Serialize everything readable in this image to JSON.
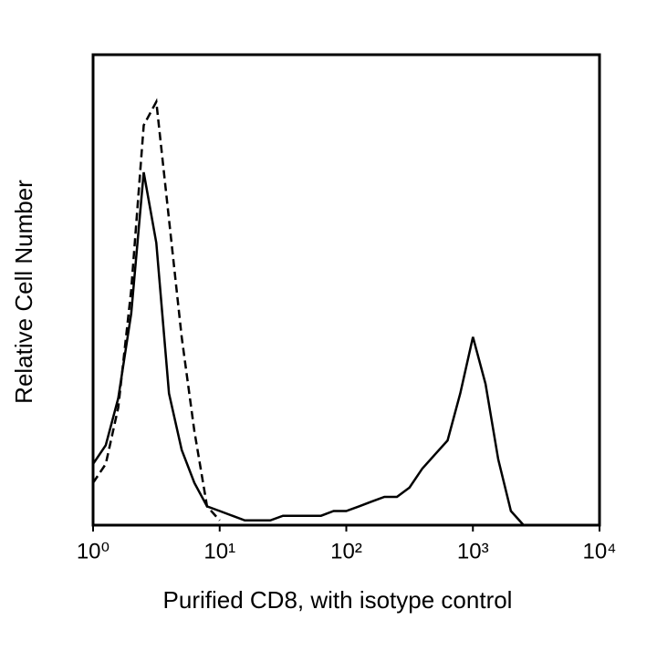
{
  "chart_data": {
    "type": "line",
    "x_label": "Purified CD8, with isotype control",
    "y_label": "Relative Cell Number",
    "x": [
      1,
      1.26,
      1.58,
      2,
      2.51,
      3.16,
      3.98,
      5.01,
      6.31,
      7.94,
      10,
      12.6,
      15.8,
      20,
      25.1,
      31.6,
      39.8,
      50.1,
      63.1,
      79.4,
      100,
      126,
      158,
      200,
      251,
      316,
      398,
      501,
      631,
      794,
      1000,
      1259,
      1585,
      1995,
      2512,
      3162
    ],
    "series": [
      {
        "color": "#000000",
        "line_style": "solid",
        "values": [
          13,
          17,
          27,
          45,
          75,
          60,
          28,
          16,
          9,
          4,
          3,
          2,
          1,
          1,
          1,
          2,
          2,
          2,
          2,
          3,
          3,
          4,
          5,
          6,
          6,
          8,
          12,
          15,
          18,
          28,
          40,
          30,
          14,
          3,
          0,
          0
        ]
      },
      {
        "color": "#000000",
        "line_style": "dashed",
        "values": [
          9,
          13,
          25,
          50,
          85,
          90,
          65,
          40,
          20,
          4,
          1,
          null,
          null,
          null,
          null,
          null,
          null,
          null,
          null,
          null,
          null,
          null,
          null,
          null,
          null,
          null,
          null,
          null,
          null,
          null,
          null,
          null,
          null,
          null,
          null,
          null
        ]
      }
    ],
    "log_x": true,
    "xlim": [
      1,
      10000
    ],
    "xticks": [
      {
        "value": 1,
        "label": "10⁰"
      },
      {
        "value": 10,
        "label": "10¹"
      },
      {
        "value": 100,
        "label": "10²"
      },
      {
        "value": 1000,
        "label": "10³"
      },
      {
        "value": 10000,
        "label": "10⁴"
      }
    ],
    "ylim": [
      0,
      100
    ]
  }
}
